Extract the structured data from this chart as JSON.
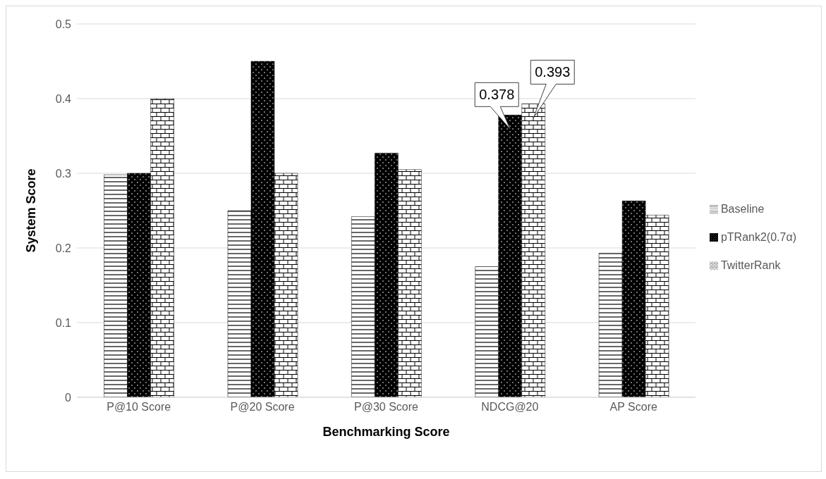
{
  "chart_data": {
    "type": "bar",
    "xlabel": "Benchmarking Score",
    "ylabel": "System Score",
    "categories": [
      "P@10 Score",
      "P@20 Score",
      "P@30 Score",
      "NDCG@20",
      "AP Score"
    ],
    "series": [
      {
        "name": "Baseline",
        "color": "#000000",
        "values": [
          0.298,
          0.25,
          0.242,
          0.175,
          0.193
        ]
      },
      {
        "name": "pTRank2(0.7α)",
        "color": "#000000",
        "values": [
          0.3,
          0.45,
          0.327,
          0.378,
          0.263
        ],
        "value_labels": [
          null,
          null,
          null,
          "0.378",
          null
        ]
      },
      {
        "name": "TwitterRank",
        "color": "#000000",
        "values": [
          0.4,
          0.3,
          0.305,
          0.393,
          0.244
        ],
        "value_labels": [
          null,
          null,
          null,
          "0.393",
          null
        ]
      }
    ],
    "ylim": [
      0,
      0.5
    ],
    "yticks": [
      0,
      0.1,
      0.2,
      0.3,
      0.4,
      0.5
    ],
    "grid": "y",
    "legend": "right"
  }
}
